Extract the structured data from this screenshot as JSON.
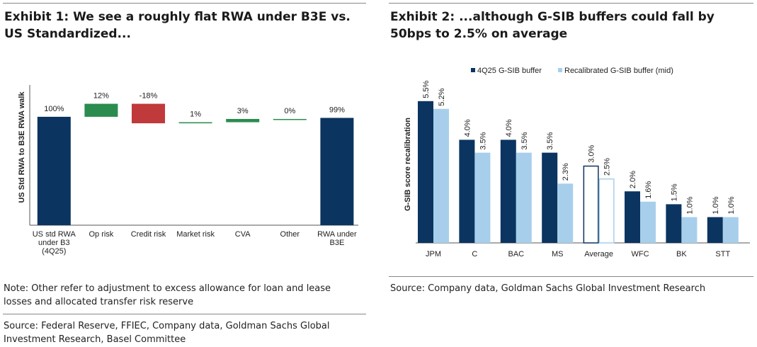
{
  "exhibit1": {
    "title": "Exhibit 1: We see a roughly flat RWA under B3E vs. US Standardized...",
    "note": "Note: Other refer to adjustment to excess allowance for loan and lease losses and allocated transfer risk reserve",
    "source": "Source: Federal Reserve, FFIEC, Company data, Goldman Sachs Global Investment Research, Basel Committee"
  },
  "exhibit2": {
    "title": "Exhibit 2: ...although G-SIB buffers could fall by 50bps to 2.5% on average",
    "source": "Source: Company data, Goldman Sachs Global Investment Research"
  },
  "chart_data": [
    {
      "type": "bar",
      "subtype": "waterfall",
      "ylabel": "US Std RWA to B3E RWA walk",
      "categories": [
        [
          "US std RWA",
          "under B3",
          "(4Q25)"
        ],
        [
          "Op risk"
        ],
        [
          "Credit risk"
        ],
        [
          "Market risk"
        ],
        [
          "CVA"
        ],
        [
          "Other"
        ],
        [
          "RWA under",
          "B3E"
        ]
      ],
      "values": [
        100,
        12,
        -18,
        1,
        3,
        0,
        99
      ],
      "labels": [
        "100%",
        "12%",
        "-18%",
        "1%",
        "3%",
        "0%",
        "99%"
      ],
      "kinds": [
        "total",
        "inc",
        "dec",
        "inc",
        "inc",
        "inc",
        "total"
      ],
      "colors": {
        "total": "#0b3460",
        "inc": "#2a8c4e",
        "dec": "#c0393b"
      }
    },
    {
      "type": "bar",
      "ylabel": "G-SIB score recalibration",
      "categories": [
        "JPM",
        "C",
        "BAC",
        "MS",
        "Average",
        "WFC",
        "BK",
        "STT"
      ],
      "series": [
        {
          "name": "4Q25 G-SIB buffer",
          "values": [
            5.5,
            4.0,
            4.0,
            3.5,
            3.0,
            2.0,
            1.5,
            1.0
          ],
          "labels": [
            "5.5%",
            "4.0%",
            "4.0%",
            "3.5%",
            "3.0%",
            "2.0%",
            "1.5%",
            "1.0%"
          ]
        },
        {
          "name": "Recalibrated G-SIB buffer (mid)",
          "values": [
            5.2,
            3.5,
            3.5,
            2.3,
            2.5,
            1.6,
            1.0,
            1.0
          ],
          "labels": [
            "5.2%",
            "3.5%",
            "3.5%",
            "2.3%",
            "2.5%",
            "1.6%",
            "1.0%",
            "1.0%"
          ]
        }
      ],
      "colors": {
        "series1": "#0b3460",
        "series2": "#a7cfec",
        "average_outline": "#0b3460"
      }
    }
  ]
}
